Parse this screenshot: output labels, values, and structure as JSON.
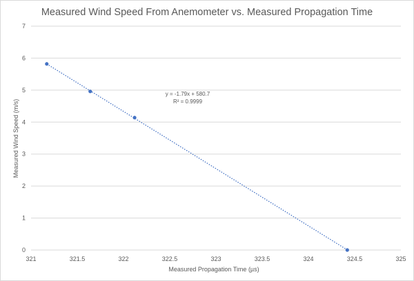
{
  "chart_data": {
    "type": "scatter",
    "title": "Measured Wind Speed From Anemometer vs. Measured Propagation Time",
    "xlabel": "Measured Propagation Time (µs)",
    "ylabel": "Measured Wind Speed (m/s)",
    "xlim": [
      321,
      325
    ],
    "ylim": [
      0,
      7
    ],
    "x_ticks": [
      "321",
      "321.5",
      "322",
      "322.5",
      "323",
      "323.5",
      "324",
      "324.5",
      "325"
    ],
    "y_ticks": [
      "0",
      "1",
      "2",
      "3",
      "4",
      "5",
      "6",
      "7"
    ],
    "grid": "horizontal",
    "legend": "none",
    "series": [
      {
        "x": [
          321.17,
          321.64,
          322.12,
          324.42
        ],
        "y": [
          5.82,
          4.96,
          4.14,
          0.0
        ],
        "color": "#4472c4",
        "marker": "circle"
      }
    ],
    "trendline": {
      "type": "linear",
      "style": "dotted",
      "color": "#4472c4",
      "slope": -1.79,
      "intercept": 580.7,
      "x_range": [
        321.17,
        324.42
      ],
      "equation_text": "y = -1.79x + 580.7",
      "r2_text": "R² = 0.9999"
    },
    "gridline_color": "#d9d9d9"
  }
}
